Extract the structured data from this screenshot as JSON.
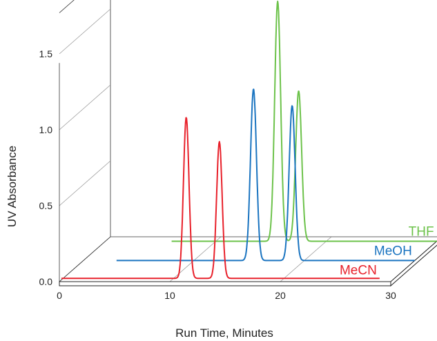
{
  "chart_data": {
    "type": "line",
    "title": "",
    "xlabel": "Run Time, Minutes",
    "ylabel": "UV Absorbance",
    "xlim": [
      0,
      30
    ],
    "ylim": [
      0,
      1.75
    ],
    "x_ticks": [
      "0",
      "10",
      "20",
      "30"
    ],
    "y_ticks": [
      "0.0",
      "0.5",
      "1.0",
      "1.5"
    ],
    "grid": true,
    "legend": "inline-right",
    "series": [
      {
        "name": "MeCN",
        "color": "#e8202a",
        "baseline": 0.01,
        "peaks": [
          {
            "x": 11.3,
            "height": 1.06,
            "width": 0.25
          },
          {
            "x": 14.3,
            "height": 0.9,
            "width": 0.25
          }
        ]
      },
      {
        "name": "MeOH",
        "color": "#1a74c0",
        "baseline": 0.0,
        "peaks": [
          {
            "x": 15.4,
            "height": 1.13,
            "width": 0.27
          },
          {
            "x": 18.9,
            "height": 1.02,
            "width": 0.27
          }
        ]
      },
      {
        "name": "THF",
        "color": "#6cc24a",
        "baseline": 0.0,
        "peaks": [
          {
            "x": 15.6,
            "height": 1.58,
            "width": 0.27
          },
          {
            "x": 17.5,
            "height": 0.99,
            "width": 0.27
          }
        ]
      }
    ]
  }
}
